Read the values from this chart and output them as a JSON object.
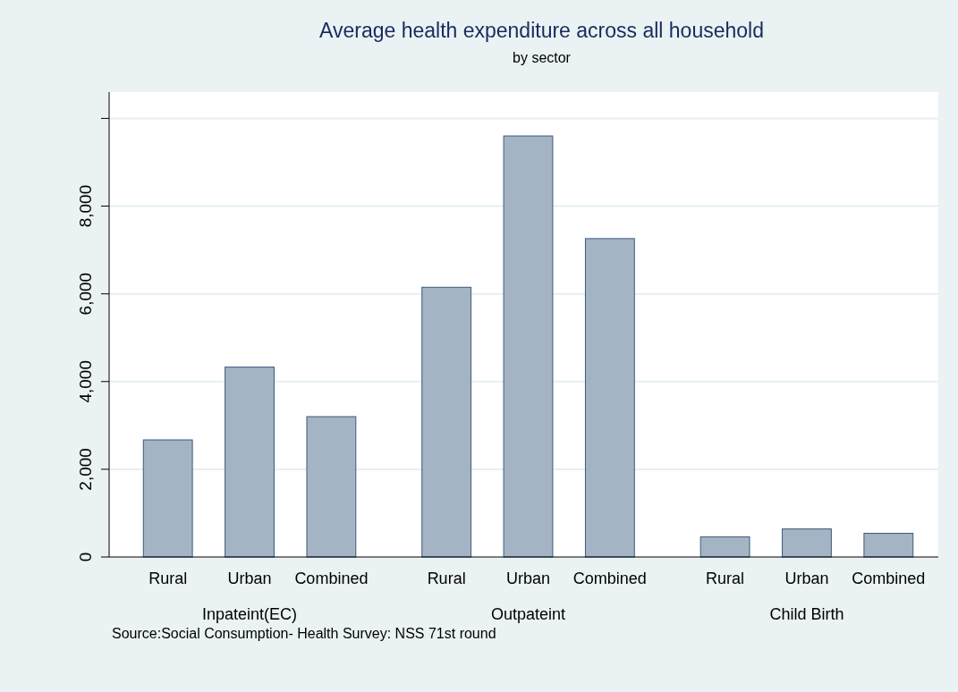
{
  "chart_data": {
    "type": "bar",
    "title": "Average health expenditure across all household",
    "subtitle": "by sector",
    "categories": [
      "Inpateint(EC)",
      "Outpateint",
      "Child Birth"
    ],
    "series": [
      {
        "name": "Rural",
        "color": "#a4b4c4",
        "values": [
          2670,
          6150,
          460
        ]
      },
      {
        "name": "Urban",
        "color": "#a4b4c4",
        "values": [
          4330,
          9600,
          640
        ]
      },
      {
        "name": "Combined",
        "color": "#a4b4c4",
        "values": [
          3200,
          7260,
          540
        ]
      }
    ],
    "ylim": [
      0,
      10600
    ],
    "yticks": [
      0,
      {
        "value": 2000,
        "label": "2,000"
      },
      {
        "value": 4000,
        "label": "4,000"
      },
      {
        "value": 6000,
        "label": "6,000"
      },
      {
        "value": 8000,
        "label": "8,000"
      },
      {
        "value": 10000,
        "label": null
      }
    ],
    "grid": "y",
    "annotations": [
      "Source:Social Consumption- Health Survey: NSS 71st round"
    ]
  }
}
